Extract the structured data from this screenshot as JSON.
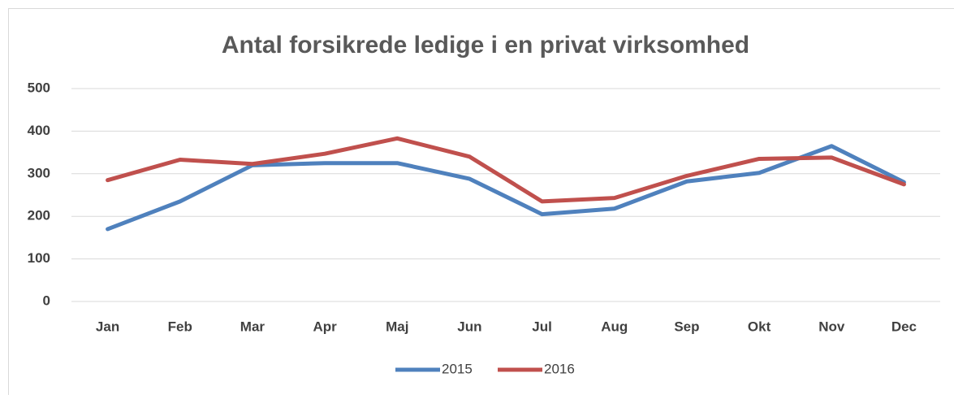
{
  "chart_data": {
    "type": "line",
    "title": "Antal forsikrede ledige i en privat virksomhed",
    "categories": [
      "Jan",
      "Feb",
      "Mar",
      "Apr",
      "Maj",
      "Jun",
      "Jul",
      "Aug",
      "Sep",
      "Okt",
      "Nov",
      "Dec"
    ],
    "series": [
      {
        "name": "2015",
        "color": "#4f81bd",
        "values": [
          170,
          235,
          320,
          325,
          325,
          288,
          205,
          218,
          282,
          302,
          365,
          280
        ]
      },
      {
        "name": "2016",
        "color": "#c0504d",
        "values": [
          285,
          333,
          323,
          347,
          383,
          340,
          235,
          243,
          295,
          335,
          338,
          275
        ]
      }
    ],
    "ylim": [
      0,
      500
    ],
    "yticks": [
      0,
      100,
      200,
      300,
      400,
      500
    ],
    "grid": true,
    "legend": "bottom"
  }
}
